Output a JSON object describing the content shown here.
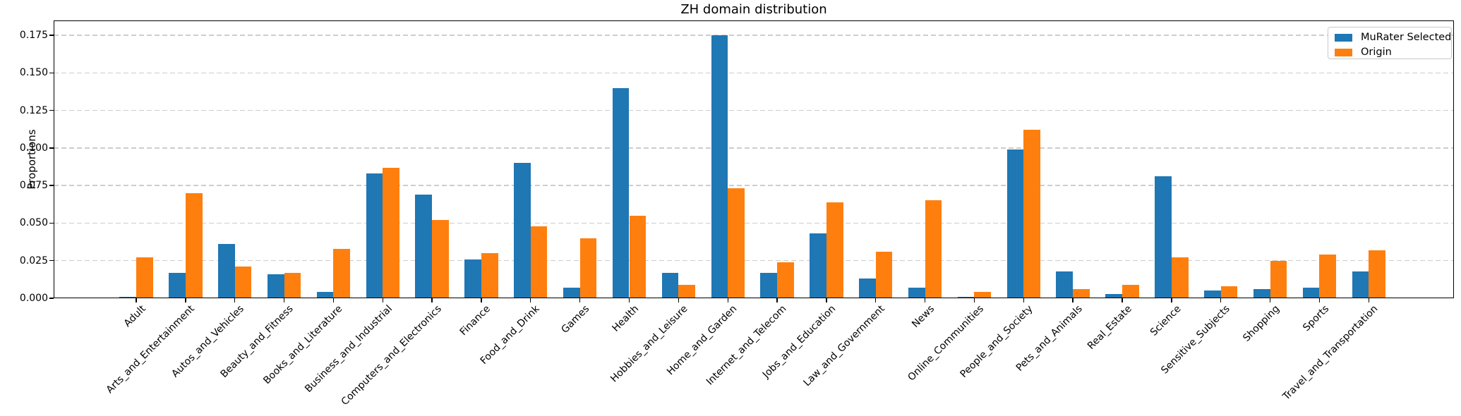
{
  "chart_data": {
    "type": "bar",
    "title": "ZH domain distribution",
    "xlabel": "",
    "ylabel": "Proportions",
    "categories": [
      "Adult",
      "Arts_and_Entertainment",
      "Autos_and_Vehicles",
      "Beauty_and_Fitness",
      "Books_and_Literature",
      "Business_and_Industrial",
      "Computers_and_Electronics",
      "Finance",
      "Food_and_Drink",
      "Games",
      "Health",
      "Hobbies_and_Leisure",
      "Home_and_Garden",
      "Internet_and_Telecom",
      "Jobs_and_Education",
      "Law_and_Government",
      "News",
      "Online_Communities",
      "People_and_Society",
      "Pets_and_Animals",
      "Real_Estate",
      "Science",
      "Sensitive_Subjects",
      "Shopping",
      "Sports",
      "Travel_and_Transportation"
    ],
    "series": [
      {
        "name": "MuRater Selected",
        "color": "#1f77b4",
        "values": [
          0.001,
          0.017,
          0.036,
          0.016,
          0.004,
          0.083,
          0.069,
          0.026,
          0.09,
          0.007,
          0.14,
          0.017,
          0.175,
          0.017,
          0.043,
          0.013,
          0.007,
          0.001,
          0.099,
          0.018,
          0.003,
          0.081,
          0.005,
          0.006,
          0.007,
          0.018
        ]
      },
      {
        "name": "Origin",
        "color": "#ff7f0e",
        "values": [
          0.027,
          0.07,
          0.021,
          0.017,
          0.033,
          0.087,
          0.052,
          0.03,
          0.048,
          0.04,
          0.055,
          0.009,
          0.073,
          0.024,
          0.064,
          0.031,
          0.065,
          0.004,
          0.112,
          0.006,
          0.009,
          0.027,
          0.008,
          0.025,
          0.029,
          0.032
        ]
      }
    ],
    "ylim": [
      0,
      0.185
    ],
    "yticks": [
      0,
      0.025,
      0.05,
      0.075,
      0.1,
      0.125,
      0.15,
      0.175
    ],
    "ytick_labels": [
      "0.000",
      "0.025",
      "0.050",
      "0.075",
      "0.100",
      "0.125",
      "0.150",
      "0.175"
    ],
    "grid": "horizontal-dashed",
    "legend_position": "upper-right",
    "xtick_rotation_deg": 45
  }
}
